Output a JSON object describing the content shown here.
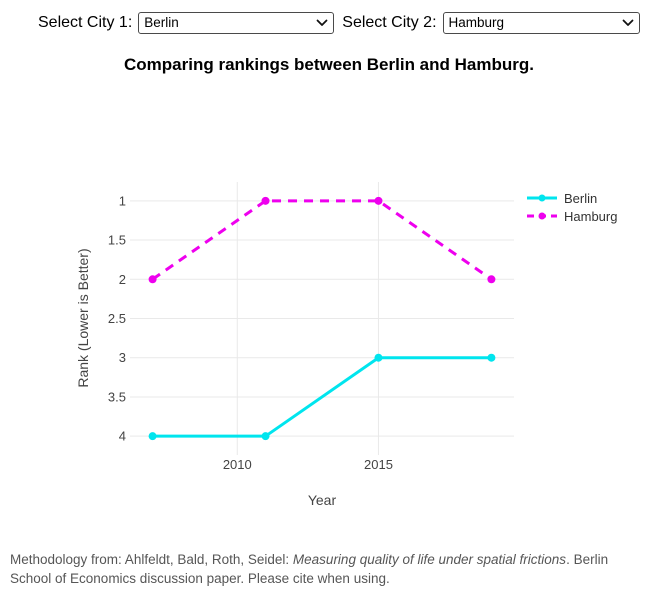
{
  "controls": {
    "city1_label": "Select City 1:",
    "city1_value": "Berlin",
    "city2_label": "Select City 2:",
    "city2_value": "Hamburg"
  },
  "title": "Comparing rankings between Berlin and Hamburg.",
  "chart_data": {
    "type": "line",
    "x": [
      2007,
      2011,
      2015,
      2019
    ],
    "series": [
      {
        "name": "Berlin",
        "values": [
          4,
          4,
          3,
          3
        ],
        "color": "#00E5EE",
        "dash": "solid"
      },
      {
        "name": "Hamburg",
        "values": [
          2,
          1,
          1,
          2
        ],
        "color": "#EE00EE",
        "dash": "dash"
      }
    ],
    "xlabel": "Year",
    "ylabel": "Rank (Lower is Better)",
    "xticks": [
      2010,
      2015
    ],
    "yticks": [
      1,
      1.5,
      2,
      2.5,
      3,
      3.5,
      4
    ],
    "x_range": [
      2006.2,
      2019.8
    ],
    "y_range": [
      4.24,
      0.76
    ],
    "y_reversed": true,
    "grid": true,
    "legend_position": "top-right-outside",
    "colors": {
      "grid": "#E9E9E9",
      "tick_text": "#444444",
      "axis_title_text": "#444444",
      "legend_text": "#333333",
      "plot_background": "#ffffff"
    }
  },
  "footer": {
    "prefix": "Methodology from: Ahlfeldt, Bald, Roth, Seidel: ",
    "italic": "Measuring quality of life under spatial frictions",
    "suffix": ". Berlin School of Economics discussion paper. Please cite when using."
  }
}
